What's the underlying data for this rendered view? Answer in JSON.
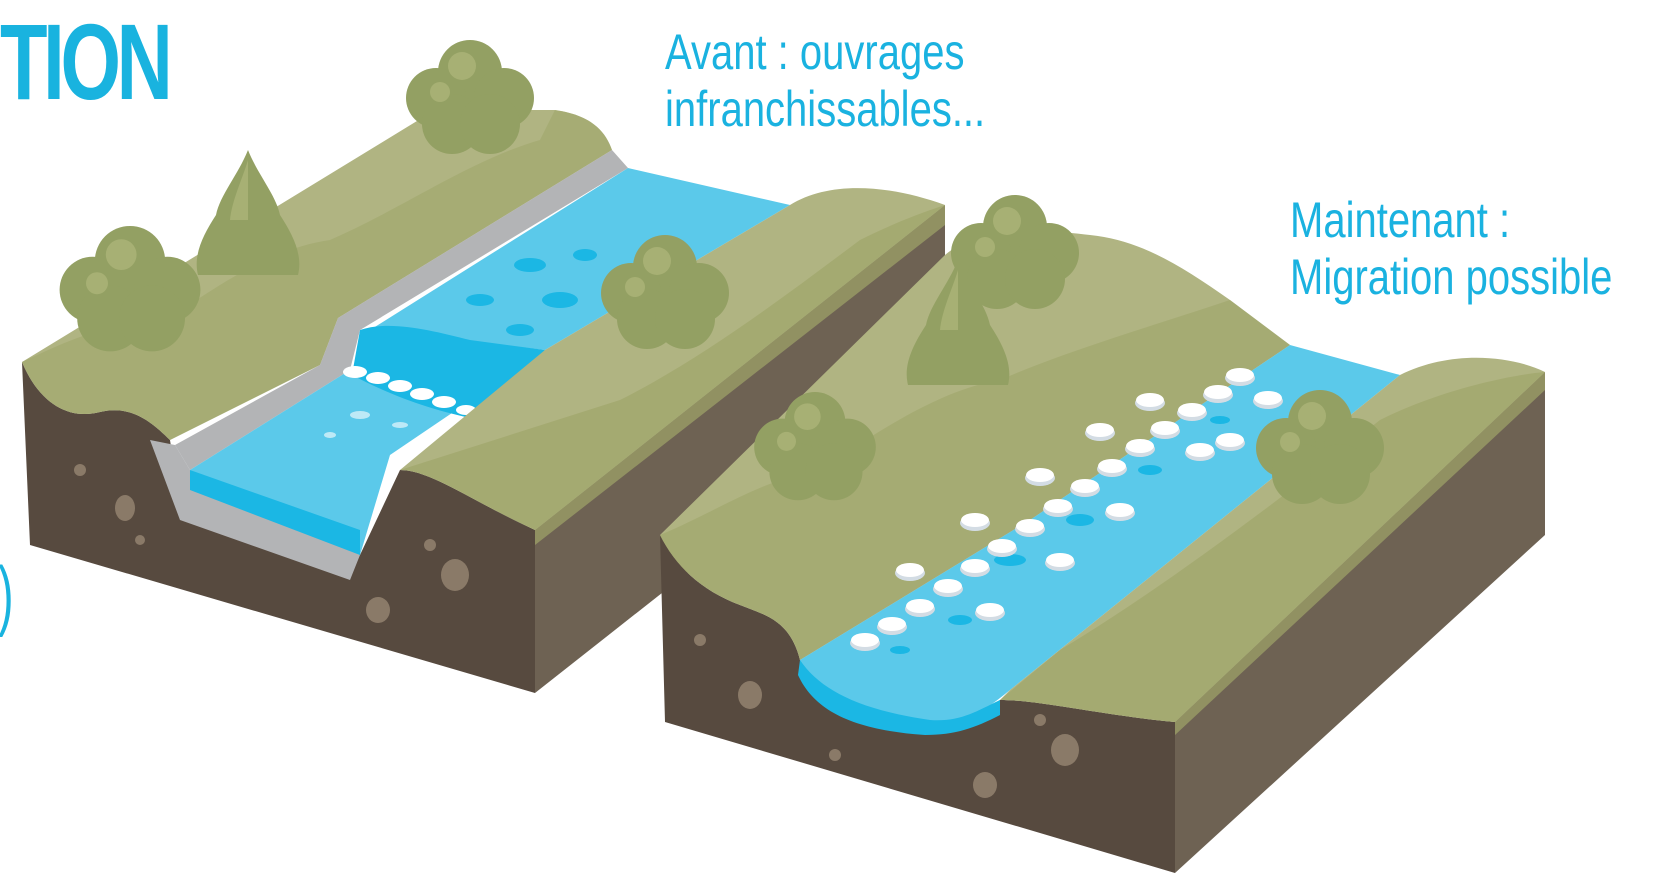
{
  "fragments": {
    "title_partial": "TION",
    "paren_partial": ")"
  },
  "before": {
    "line1": "Avant : ouvrages",
    "line2": "infranchissables..."
  },
  "after": {
    "line1": "Maintenant :",
    "line2": "Migration possible"
  },
  "colors": {
    "accent_text": "#1ab2e0",
    "grass_top": "#b0b482",
    "grass_mid": "#9fa569",
    "tree": "#93a063",
    "tree_light": "#a7b074",
    "soil_front": "#574a3f",
    "soil_side": "#6e6253",
    "water": "#5bc9ea",
    "water_deep": "#1bb7e4",
    "concrete": "#b3b4b6",
    "foam": "#ffffff",
    "rock_shadow": "#d3dce4"
  },
  "icons": [
    "tree-icon",
    "conifer-icon",
    "rock-icon",
    "stone-icon"
  ]
}
